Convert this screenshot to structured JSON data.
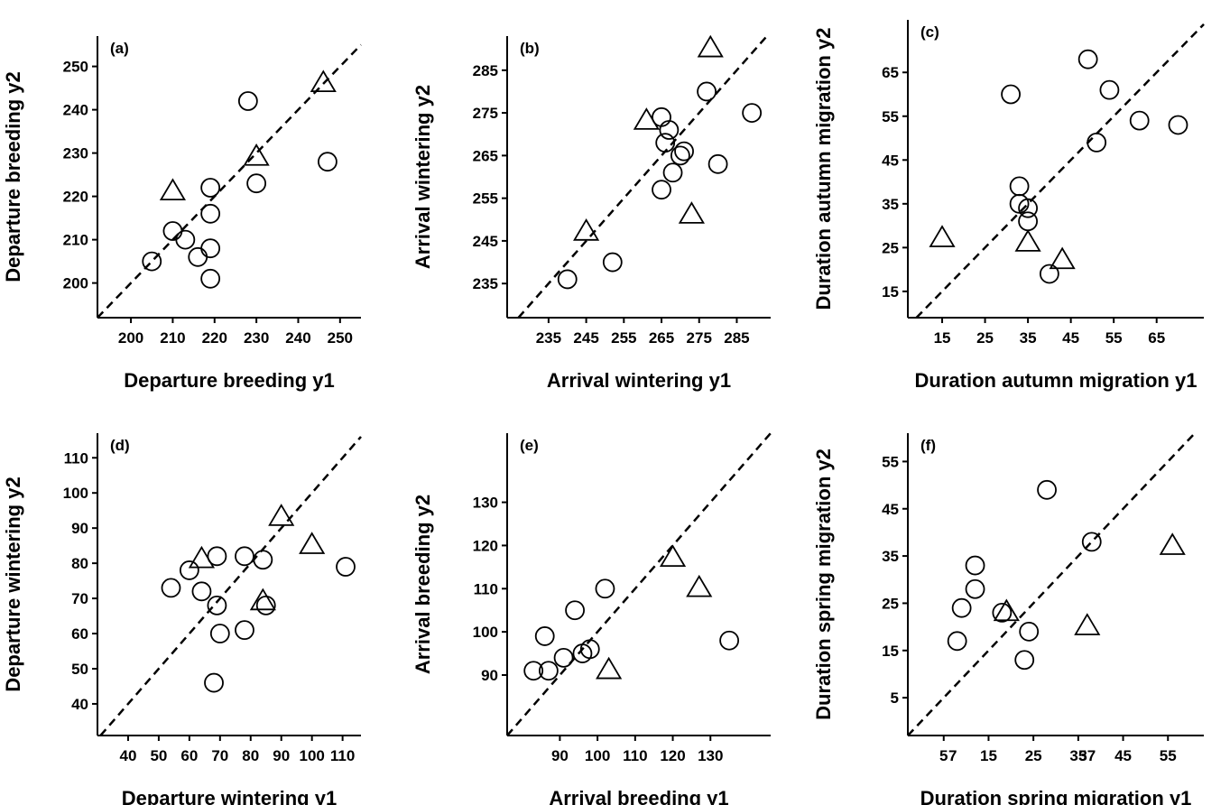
{
  "chart_data": [
    {
      "type": "scatter",
      "panel_label": "(a)",
      "xlabel": "Departure breeding y1",
      "ylabel": "Departure breeding y2",
      "xlim": [
        192,
        255
      ],
      "ylim": [
        192,
        257
      ],
      "xticks": [
        200,
        210,
        220,
        230,
        240,
        250
      ],
      "yticks": [
        200,
        210,
        220,
        230,
        240,
        250
      ],
      "grid": false,
      "reference_line": "y = x (dashed)",
      "series": [
        {
          "marker": "circle",
          "points": [
            [
              205,
              205
            ],
            [
              210,
              212
            ],
            [
              213,
              210
            ],
            [
              216,
              206
            ],
            [
              219,
              201
            ],
            [
              219,
              208
            ],
            [
              219,
              216
            ],
            [
              219,
              222
            ],
            [
              228,
              242
            ],
            [
              230,
              223
            ],
            [
              247,
              228
            ]
          ]
        },
        {
          "marker": "triangle",
          "points": [
            [
              210,
              221
            ],
            [
              230,
              229
            ],
            [
              246,
              246
            ]
          ]
        }
      ]
    },
    {
      "type": "scatter",
      "panel_label": "(b)",
      "xlabel": "Arrival wintering y1",
      "ylabel": "Arrival wintering y2",
      "xlim": [
        224,
        294
      ],
      "ylim": [
        227,
        293
      ],
      "xticks": [
        235,
        245,
        255,
        265,
        275,
        285
      ],
      "yticks": [
        235,
        245,
        255,
        265,
        275,
        285
      ],
      "grid": false,
      "reference_line": "y = x (dashed)",
      "series": [
        {
          "marker": "circle",
          "points": [
            [
              240,
              236
            ],
            [
              252,
              240
            ],
            [
              265,
              257
            ],
            [
              265,
              274
            ],
            [
              266,
              268
            ],
            [
              267,
              271
            ],
            [
              268,
              261
            ],
            [
              270,
              265
            ],
            [
              271,
              266
            ],
            [
              277,
              280
            ],
            [
              280,
              263
            ],
            [
              289,
              275
            ]
          ]
        },
        {
          "marker": "triangle",
          "points": [
            [
              245,
              247
            ],
            [
              261,
              273
            ],
            [
              273,
              251
            ],
            [
              278,
              290
            ]
          ]
        }
      ]
    },
    {
      "type": "scatter",
      "panel_label": "(c)",
      "xlabel": "Duration autumn migration y1",
      "ylabel": "Duration autumn migration y2",
      "xlim": [
        7,
        76
      ],
      "ylim": [
        9,
        77
      ],
      "xticks": [
        15,
        25,
        35,
        45,
        55,
        65
      ],
      "yticks": [
        15,
        25,
        35,
        45,
        55,
        65
      ],
      "grid": false,
      "reference_line": "y = x (dashed)",
      "series": [
        {
          "marker": "circle",
          "points": [
            [
              31,
              60
            ],
            [
              33,
              39
            ],
            [
              33,
              35
            ],
            [
              35,
              34
            ],
            [
              35,
              31
            ],
            [
              40,
              19
            ],
            [
              49,
              68
            ],
            [
              51,
              49
            ],
            [
              54,
              61
            ],
            [
              61,
              54
            ],
            [
              70,
              53
            ]
          ]
        },
        {
          "marker": "triangle",
          "points": [
            [
              15,
              27
            ],
            [
              35,
              26
            ],
            [
              43,
              22
            ]
          ]
        }
      ]
    },
    {
      "type": "scatter",
      "panel_label": "(d)",
      "xlabel": "Departure wintering y1",
      "ylabel": "Departure wintering y2",
      "xlim": [
        30,
        116
      ],
      "ylim": [
        31,
        117
      ],
      "xticks": [
        40,
        50,
        60,
        70,
        80,
        90,
        100,
        110
      ],
      "yticks": [
        40,
        50,
        60,
        70,
        80,
        90,
        100,
        110
      ],
      "grid": false,
      "reference_line": "y = x (dashed)",
      "series": [
        {
          "marker": "circle",
          "points": [
            [
              54,
              73
            ],
            [
              60,
              78
            ],
            [
              64,
              72
            ],
            [
              68,
              46
            ],
            [
              69,
              68
            ],
            [
              69,
              82
            ],
            [
              70,
              60
            ],
            [
              78,
              61
            ],
            [
              78,
              82
            ],
            [
              84,
              81
            ],
            [
              85,
              68
            ],
            [
              111,
              79
            ]
          ]
        },
        {
          "marker": "triangle",
          "points": [
            [
              64,
              81
            ],
            [
              84,
              69
            ],
            [
              90,
              93
            ],
            [
              100,
              85
            ]
          ]
        }
      ]
    },
    {
      "type": "scatter",
      "panel_label": "(e)",
      "xlabel": "Arrival breeding y1",
      "ylabel": "Arrival breeding y2",
      "xlim": [
        76,
        146
      ],
      "ylim": [
        76,
        146
      ],
      "xticks": [
        90,
        100,
        110,
        120,
        130
      ],
      "yticks": [
        90,
        100,
        110,
        120,
        130
      ],
      "grid": false,
      "reference_line": "y = x (dashed)",
      "series": [
        {
          "marker": "circle",
          "points": [
            [
              83,
              91
            ],
            [
              86,
              99
            ],
            [
              87,
              91
            ],
            [
              91,
              94
            ],
            [
              94,
              105
            ],
            [
              96,
              95
            ],
            [
              98,
              96
            ],
            [
              102,
              110
            ],
            [
              135,
              98
            ]
          ]
        },
        {
          "marker": "triangle",
          "points": [
            [
              103,
              91
            ],
            [
              120,
              117
            ],
            [
              127,
              110
            ]
          ]
        }
      ]
    },
    {
      "type": "scatter",
      "panel_label": "(f)",
      "xlabel": "Duration spring migration y1",
      "ylabel": "Duration spring migration y2",
      "xlim": [
        -3,
        63
      ],
      "ylim": [
        -3,
        61
      ],
      "xticks": [
        5,
        15,
        25,
        35,
        45,
        55
      ],
      "extra_xtick_labels": [
        "7",
        "37"
      ],
      "yticks": [
        5,
        15,
        25,
        35,
        45,
        55
      ],
      "grid": false,
      "reference_line": "y = x (dashed)",
      "series": [
        {
          "marker": "circle",
          "points": [
            [
              8,
              17
            ],
            [
              9,
              24
            ],
            [
              12,
              33
            ],
            [
              12,
              28
            ],
            [
              18,
              23
            ],
            [
              23,
              13
            ],
            [
              24,
              19
            ],
            [
              28,
              49
            ],
            [
              38,
              38
            ]
          ]
        },
        {
          "marker": "triangle",
          "points": [
            [
              19,
              23
            ],
            [
              37,
              20
            ],
            [
              56,
              37
            ]
          ]
        }
      ]
    }
  ]
}
